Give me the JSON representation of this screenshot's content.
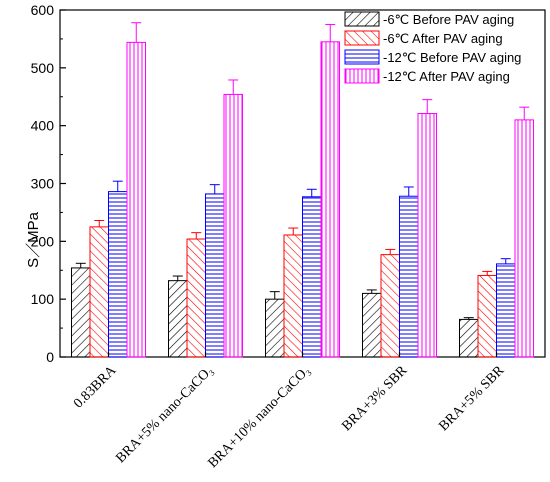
{
  "chart_data": {
    "type": "bar",
    "categories": [
      "0.83BRA",
      "BRA+5% nano-CaCO₃",
      "BRA+10% nano-CaCO₃",
      "BRA+3% SBR",
      "BRA+5% SBR"
    ],
    "series": [
      {
        "name": "-6℃ Before PAV aging",
        "color": "#000000",
        "pattern": "diagonal-right",
        "values": [
          154,
          132,
          100,
          110,
          65
        ],
        "errors": [
          8,
          8,
          13,
          6,
          3
        ]
      },
      {
        "name": "-6℃ After PAV aging",
        "color": "#ff0000",
        "pattern": "diagonal-left",
        "values": [
          225,
          204,
          211,
          177,
          141
        ],
        "errors": [
          11,
          11,
          12,
          9,
          7
        ]
      },
      {
        "name": "-12℃ Before PAV aging",
        "color": "#0000ff",
        "pattern": "horizontal",
        "values": [
          286,
          282,
          277,
          278,
          161
        ],
        "errors": [
          18,
          16,
          13,
          16,
          9
        ]
      },
      {
        "name": "-12℃ After PAV aging",
        "color": "#ff00ff",
        "pattern": "vertical",
        "values": [
          544,
          454,
          545,
          421,
          410
        ],
        "errors": [
          34,
          25,
          30,
          24,
          22
        ]
      }
    ],
    "ylabel": "S／MPa",
    "ylim": [
      0,
      600
    ],
    "yticks": [
      0,
      100,
      200,
      300,
      400,
      500,
      600
    ],
    "legend_position": "top-right",
    "grid": false
  }
}
